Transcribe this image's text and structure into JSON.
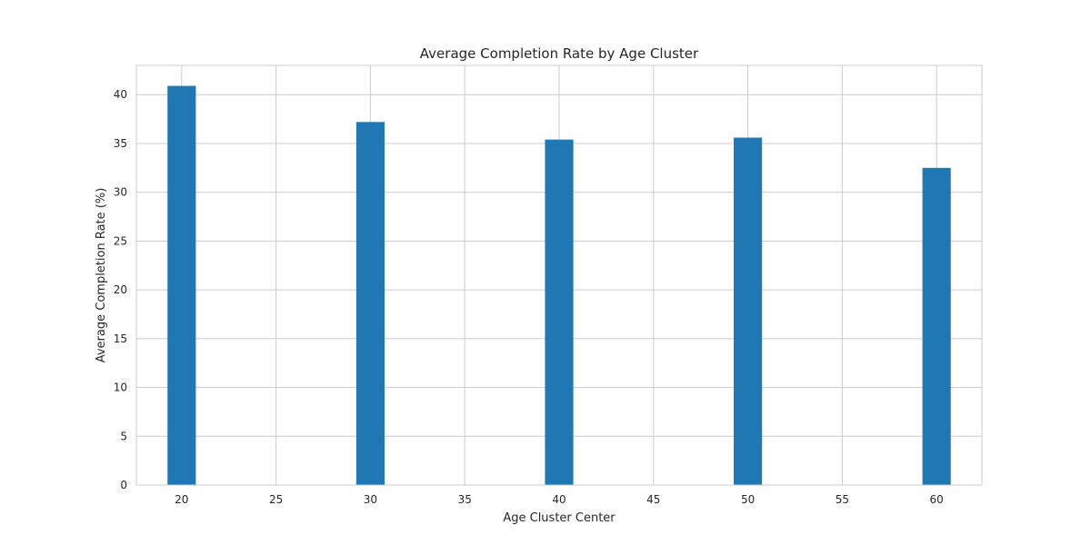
{
  "chart_data": {
    "type": "bar",
    "title": "Average Completion Rate by Age Cluster",
    "xlabel": "Age Cluster Center",
    "ylabel": "Average Completion Rate (%)",
    "x": [
      20,
      30,
      40,
      50,
      60
    ],
    "values": [
      40.9,
      37.2,
      35.4,
      35.6,
      32.5
    ],
    "bar_width": 1.5,
    "xlim": [
      17.6,
      62.4
    ],
    "ylim": [
      0,
      43
    ],
    "xticks": [
      20,
      25,
      30,
      35,
      40,
      45,
      50,
      55,
      60
    ],
    "yticks": [
      0,
      5,
      10,
      15,
      20,
      25,
      30,
      35,
      40
    ],
    "grid": true,
    "bar_color": "#1f77b4",
    "grid_color": "#cccccc"
  }
}
